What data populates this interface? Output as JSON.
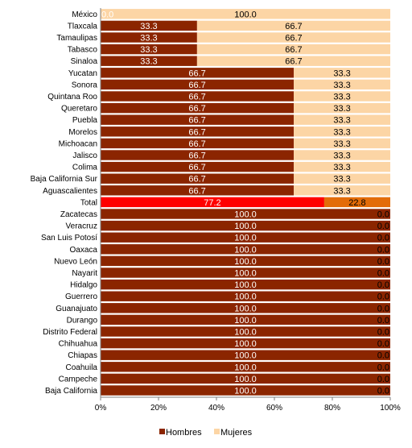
{
  "chart_data": {
    "type": "bar",
    "orientation": "horizontal",
    "stacked": "percent",
    "categories": [
      "México",
      "Tlaxcala",
      "Tamaulipas",
      "Tabasco",
      "Sinaloa",
      "Yucatan",
      "Sonora",
      "Quintana Roo",
      "Queretaro",
      "Puebla",
      "Morelos",
      "Michoacan",
      "Jalisco",
      "Colima",
      "Baja California Sur",
      "Aguascalientes",
      "Total",
      "Zacatecas",
      "Veracruz",
      "San Luis Potosí",
      "Oaxaca",
      "Nuevo León",
      "Nayarit",
      "Hidalgo",
      "Guerrero",
      "Guanajuato",
      "Durango",
      "Distrito Federal",
      "Chihuahua",
      "Chiapas",
      "Coahuila",
      "Campeche",
      "Baja California"
    ],
    "series": [
      {
        "name": "Hombres",
        "color": "#8B2500",
        "values": [
          0,
          33.3,
          33.3,
          33.3,
          33.3,
          66.7,
          66.7,
          66.7,
          66.7,
          66.7,
          66.7,
          66.7,
          66.7,
          66.7,
          66.7,
          66.7,
          77.2,
          100,
          100,
          100,
          100,
          100,
          100,
          100,
          100,
          100,
          100,
          100,
          100,
          100,
          100,
          100,
          100
        ]
      },
      {
        "name": "Mujeres",
        "color": "#FCD5A5",
        "values": [
          100,
          66.7,
          66.7,
          66.7,
          66.7,
          33.3,
          33.3,
          33.3,
          33.3,
          33.3,
          33.3,
          33.3,
          33.3,
          33.3,
          33.3,
          33.3,
          22.8,
          0,
          0,
          0,
          0,
          0,
          0,
          0,
          0,
          0,
          0,
          0,
          0,
          0,
          0,
          0,
          0
        ]
      }
    ],
    "highlight": {
      "category": "Total",
      "colors": [
        "#FF0000",
        "#E36C09"
      ]
    },
    "x_axis": {
      "min": 0,
      "max": 100,
      "ticks": [
        "0%",
        "20%",
        "40%",
        "60%",
        "80%",
        "100%"
      ]
    },
    "legend": {
      "position": "bottom",
      "entries": [
        "Hombres",
        "Mujeres"
      ]
    }
  }
}
